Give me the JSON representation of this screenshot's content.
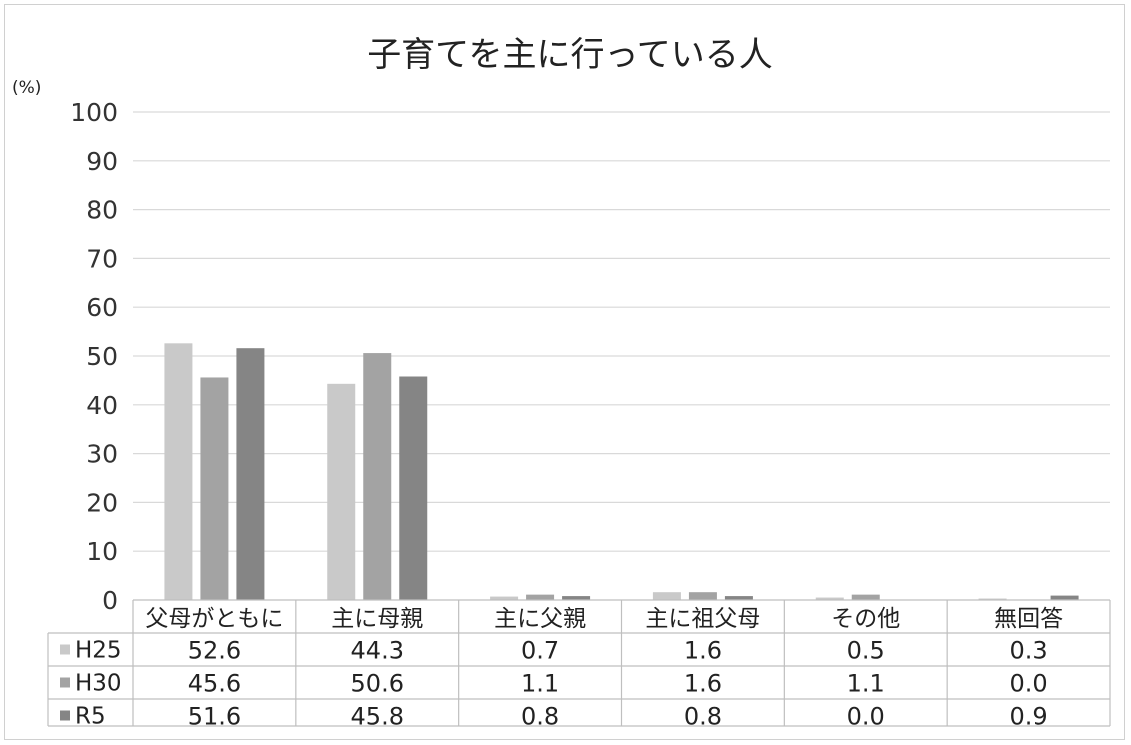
{
  "chart_data": {
    "type": "bar",
    "title": "子育てを主に行っている人",
    "ylabel": "(%)",
    "ylim": [
      0,
      100
    ],
    "yticks": [
      "0",
      "10",
      "20",
      "30",
      "40",
      "50",
      "60",
      "70",
      "80",
      "90",
      "100"
    ],
    "categories": [
      "父母がともに",
      "主に母親",
      "主に父親",
      "主に祖父母",
      "その他",
      "無回答"
    ],
    "series": [
      {
        "name": "H25",
        "color": "#c9c9c9",
        "values": [
          52.6,
          44.3,
          0.7,
          1.6,
          0.5,
          0.3
        ],
        "labels": [
          "52.6",
          "44.3",
          "0.7",
          "1.6",
          "0.5",
          "0.3"
        ]
      },
      {
        "name": "H30",
        "color": "#a3a3a3",
        "values": [
          45.6,
          50.6,
          1.1,
          1.6,
          1.1,
          0.0
        ],
        "labels": [
          "45.6",
          "50.6",
          "1.1",
          "1.6",
          "1.1",
          "0.0"
        ]
      },
      {
        "name": "R5",
        "color": "#858585",
        "values": [
          51.6,
          45.8,
          0.8,
          0.8,
          0.0,
          0.9
        ],
        "labels": [
          "51.6",
          "45.8",
          "0.8",
          "0.8",
          "0.0",
          "0.9"
        ]
      }
    ],
    "grid": true,
    "legend": "data-table"
  }
}
